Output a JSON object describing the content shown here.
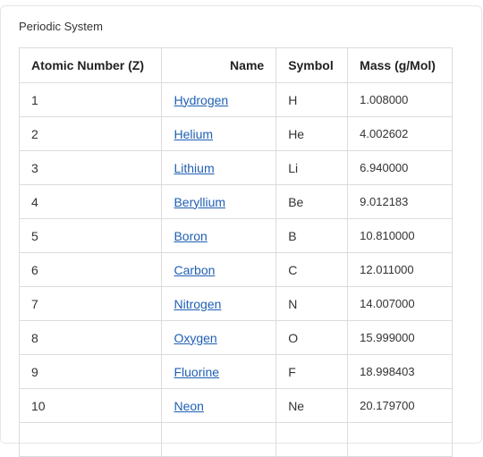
{
  "panel": {
    "title": "Periodic System"
  },
  "table": {
    "headers": {
      "atomic_number": "Atomic Number (Z)",
      "name": "Name",
      "symbol": "Symbol",
      "mass": "Mass (g/Mol)"
    },
    "rows": [
      {
        "z": "1",
        "name": "Hydrogen",
        "symbol": "H",
        "mass": "1.008000"
      },
      {
        "z": "2",
        "name": "Helium",
        "symbol": "He",
        "mass": "4.002602"
      },
      {
        "z": "3",
        "name": "Lithium",
        "symbol": "Li",
        "mass": "6.940000"
      },
      {
        "z": "4",
        "name": "Beryllium",
        "symbol": "Be",
        "mass": "9.012183"
      },
      {
        "z": "5",
        "name": "Boron",
        "symbol": "B",
        "mass": "10.810000"
      },
      {
        "z": "6",
        "name": "Carbon",
        "symbol": "C",
        "mass": "12.011000"
      },
      {
        "z": "7",
        "name": "Nitrogen",
        "symbol": "N",
        "mass": "14.007000"
      },
      {
        "z": "8",
        "name": "Oxygen",
        "symbol": "O",
        "mass": "15.999000"
      },
      {
        "z": "9",
        "name": "Fluorine",
        "symbol": "F",
        "mass": "18.998403"
      },
      {
        "z": "10",
        "name": "Neon",
        "symbol": "Ne",
        "mass": "20.179700"
      },
      {
        "z": "",
        "name": "",
        "symbol": "",
        "mass": ""
      }
    ]
  },
  "colors": {
    "link": "#1f5fb4",
    "border": "#dcdcdc"
  }
}
